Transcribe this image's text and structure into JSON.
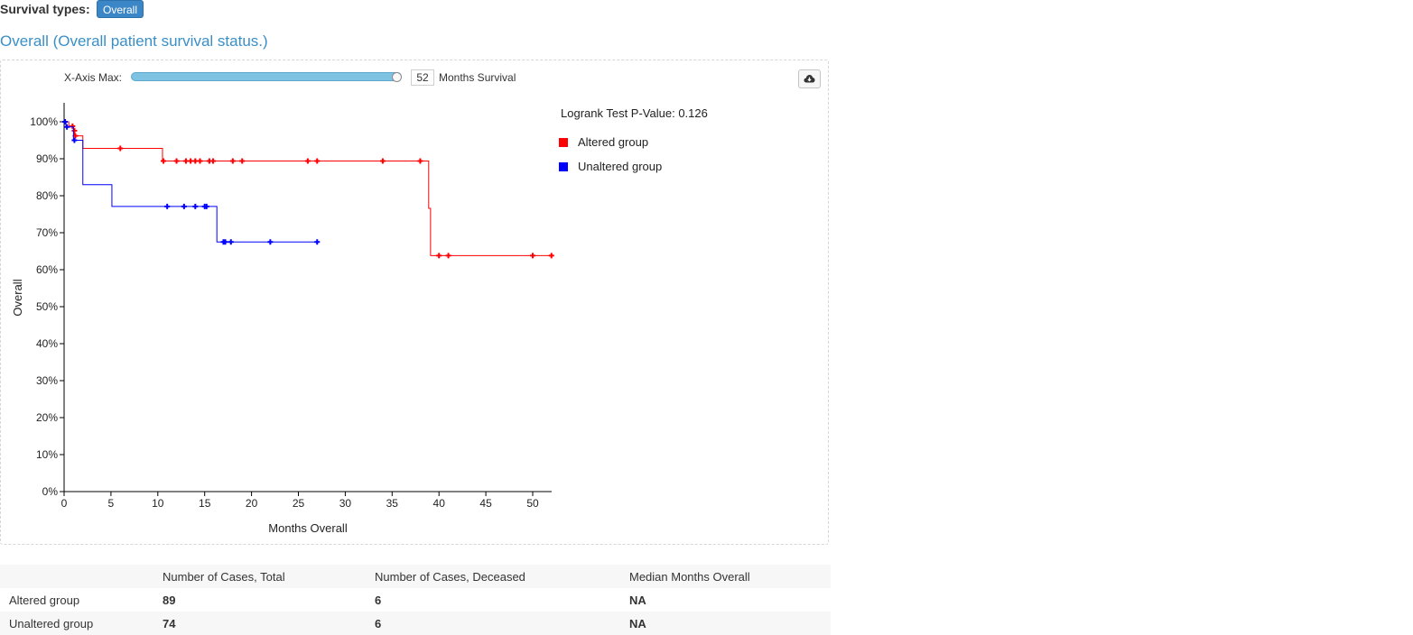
{
  "survival_types": {
    "label": "Survival types:",
    "chip": "Overall"
  },
  "section_title": "Overall (Overall patient survival status.)",
  "controls": {
    "x_axis_max_label": "X-Axis Max:",
    "x_axis_max_value": "52",
    "x_axis_unit": "Months Survival",
    "slider_fraction": 1.0,
    "download_icon": "cloud-download-icon"
  },
  "colors": {
    "altered": "#ff0000",
    "unaltered": "#0000ff",
    "accent": "#3a8fc7"
  },
  "chart_data": {
    "type": "line",
    "subtype": "kaplan-meier",
    "xlabel": "Months Overall",
    "ylabel": "Overall",
    "xlim": [
      0,
      52
    ],
    "ylim": [
      0,
      100
    ],
    "x_ticks": [
      0,
      5,
      10,
      15,
      20,
      25,
      30,
      35,
      40,
      45,
      50
    ],
    "y_ticks": [
      "0%",
      "10%",
      "20%",
      "30%",
      "40%",
      "50%",
      "60%",
      "70%",
      "80%",
      "90%",
      "100%"
    ],
    "logrank_label": "Logrank Test P-Value: 0.126",
    "legend_position": "top-right",
    "series": [
      {
        "name": "Altered group",
        "color": "#ff0000",
        "steps": [
          [
            0,
            100
          ],
          [
            0.5,
            98.8
          ],
          [
            1.0,
            97.6
          ],
          [
            1.1,
            96.2
          ],
          [
            2.0,
            92.8
          ],
          [
            10.5,
            89.4
          ],
          [
            38.9,
            76.6
          ],
          [
            39.1,
            63.8
          ],
          [
            52,
            63.8
          ]
        ],
        "censors": [
          [
            0.9,
            98.8
          ],
          [
            1.1,
            97.6
          ],
          [
            1.2,
            96.2
          ],
          [
            6,
            92.8
          ],
          [
            10.6,
            89.4
          ],
          [
            12,
            89.4
          ],
          [
            13,
            89.4
          ],
          [
            13.5,
            89.4
          ],
          [
            14,
            89.4
          ],
          [
            14.5,
            89.4
          ],
          [
            15.5,
            89.4
          ],
          [
            15.9,
            89.4
          ],
          [
            18,
            89.4
          ],
          [
            19,
            89.4
          ],
          [
            26,
            89.4
          ],
          [
            27,
            89.4
          ],
          [
            34,
            89.4
          ],
          [
            38,
            89.4
          ],
          [
            40,
            63.8
          ],
          [
            41,
            63.8
          ],
          [
            50,
            63.8
          ],
          [
            52,
            63.8
          ]
        ]
      },
      {
        "name": "Unaltered group",
        "color": "#0000ff",
        "steps": [
          [
            0,
            100
          ],
          [
            0.2,
            98.6
          ],
          [
            1.0,
            95.0
          ],
          [
            2.0,
            83.0
          ],
          [
            5.1,
            77.1
          ],
          [
            16.3,
            67.5
          ],
          [
            27,
            67.5
          ]
        ],
        "censors": [
          [
            0.1,
            100
          ],
          [
            0.3,
            98.6
          ],
          [
            1.1,
            95.0
          ],
          [
            11,
            77.1
          ],
          [
            12.8,
            77.1
          ],
          [
            14,
            77.1
          ],
          [
            15,
            77.1
          ],
          [
            15.2,
            77.1
          ],
          [
            17,
            67.5
          ],
          [
            17.2,
            67.5
          ],
          [
            17.8,
            67.5
          ],
          [
            22,
            67.5
          ],
          [
            27,
            67.5
          ]
        ]
      }
    ]
  },
  "table": {
    "headers": [
      "",
      "Number of Cases, Total",
      "Number of Cases, Deceased",
      "Median Months Overall"
    ],
    "rows": [
      [
        "Altered group",
        "89",
        "6",
        "NA"
      ],
      [
        "Unaltered group",
        "74",
        "6",
        "NA"
      ]
    ]
  }
}
